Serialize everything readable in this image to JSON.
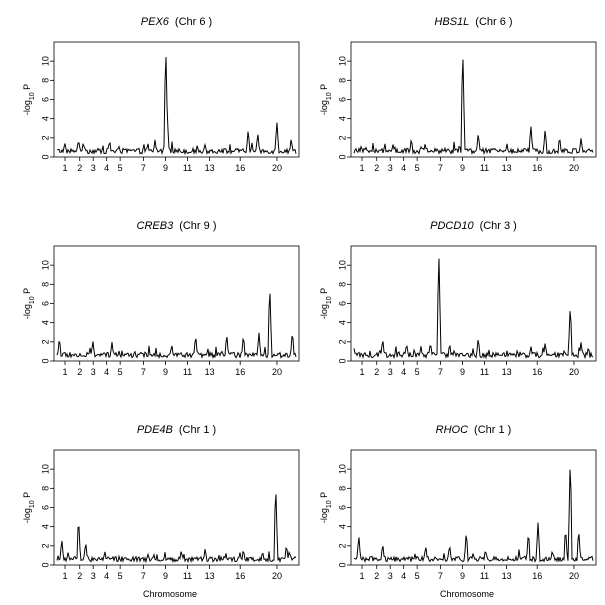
{
  "figure": {
    "xlabel": "Chromosome"
  },
  "chart_data": [
    {
      "type": "line",
      "gene": "PEX6",
      "chr_label": "(Chr 6 )",
      "ylabel": "-log10 P",
      "ylim": [
        0,
        12
      ],
      "yticks": [
        0,
        2,
        4,
        6,
        8,
        10
      ],
      "xticks": [
        "1",
        "2",
        "3",
        "4",
        "5",
        "7",
        "9",
        "11",
        "13",
        "16",
        "20"
      ],
      "peaks": [
        [
          0.03,
          1.1
        ],
        [
          0.09,
          1.9
        ],
        [
          0.11,
          1.6
        ],
        [
          0.22,
          1.8
        ],
        [
          0.38,
          1.5
        ],
        [
          0.41,
          1.8
        ],
        [
          0.455,
          11.8
        ],
        [
          0.46,
          5.5
        ],
        [
          0.62,
          1.4
        ],
        [
          0.8,
          2.9
        ],
        [
          0.84,
          2.6
        ],
        [
          0.92,
          3.8
        ],
        [
          0.98,
          2.0
        ]
      ]
    },
    {
      "type": "line",
      "gene": "HBS1L",
      "chr_label": "(Chr 6 )",
      "ylabel": "-log10 P",
      "ylim": [
        0,
        12
      ],
      "yticks": [
        0,
        2,
        4,
        6,
        8,
        10
      ],
      "xticks": [
        "1",
        "2",
        "3",
        "4",
        "5",
        "7",
        "9",
        "11",
        "13",
        "16",
        "20"
      ],
      "peaks": [
        [
          0.05,
          1.0
        ],
        [
          0.17,
          1.2
        ],
        [
          0.24,
          2.0
        ],
        [
          0.38,
          1.0
        ],
        [
          0.455,
          11.5
        ],
        [
          0.52,
          2.6
        ],
        [
          0.64,
          1.4
        ],
        [
          0.74,
          3.4
        ],
        [
          0.8,
          3.0
        ],
        [
          0.86,
          2.2
        ],
        [
          0.95,
          2.0
        ]
      ]
    },
    {
      "type": "line",
      "gene": "CREB3",
      "chr_label": "(Chr 9 )",
      "ylabel": "-log10 P",
      "ylim": [
        0,
        12
      ],
      "yticks": [
        0,
        2,
        4,
        6,
        8,
        10
      ],
      "xticks": [
        "1",
        "2",
        "3",
        "4",
        "5",
        "7",
        "9",
        "11",
        "13",
        "16",
        "20"
      ],
      "peaks": [
        [
          0.01,
          2.5
        ],
        [
          0.15,
          2.2
        ],
        [
          0.23,
          2.0
        ],
        [
          0.48,
          1.8
        ],
        [
          0.58,
          2.8
        ],
        [
          0.71,
          2.9
        ],
        [
          0.78,
          2.8
        ],
        [
          0.845,
          3.0
        ],
        [
          0.89,
          8.1
        ],
        [
          0.985,
          3.2
        ]
      ]
    },
    {
      "type": "line",
      "gene": "PDCD10",
      "chr_label": "(Chr 3 )",
      "ylabel": "-log10 P",
      "ylim": [
        0,
        12
      ],
      "yticks": [
        0,
        2,
        4,
        6,
        8,
        10
      ],
      "xticks": [
        "1",
        "2",
        "3",
        "4",
        "5",
        "7",
        "9",
        "11",
        "13",
        "16",
        "20"
      ],
      "peaks": [
        [
          0.12,
          2.4
        ],
        [
          0.22,
          1.9
        ],
        [
          0.28,
          1.6
        ],
        [
          0.32,
          2.0
        ],
        [
          0.355,
          11.5
        ],
        [
          0.4,
          1.9
        ],
        [
          0.52,
          2.5
        ],
        [
          0.74,
          1.6
        ],
        [
          0.8,
          2.0
        ],
        [
          0.905,
          6.0
        ],
        [
          0.95,
          2.0
        ]
      ]
    },
    {
      "type": "line",
      "gene": "PDE4B",
      "chr_label": "(Chr 1 )",
      "ylabel": "-log10 P",
      "ylim": [
        0,
        12
      ],
      "yticks": [
        0,
        2,
        4,
        6,
        8,
        10
      ],
      "xticks": [
        "1",
        "2",
        "3",
        "4",
        "5",
        "7",
        "9",
        "11",
        "13",
        "16",
        "20"
      ],
      "peaks": [
        [
          0.02,
          2.8
        ],
        [
          0.09,
          5.1
        ],
        [
          0.12,
          2.5
        ],
        [
          0.2,
          1.5
        ],
        [
          0.38,
          1.2
        ],
        [
          0.52,
          1.6
        ],
        [
          0.62,
          1.8
        ],
        [
          0.78,
          1.7
        ],
        [
          0.86,
          1.5
        ],
        [
          0.915,
          8.6
        ],
        [
          0.96,
          2.2
        ]
      ]
    },
    {
      "type": "line",
      "gene": "RHOC",
      "chr_label": "(Chr 1 )",
      "ylabel": "-log10 P",
      "ylim": [
        0,
        12
      ],
      "yticks": [
        0,
        2,
        4,
        6,
        8,
        10
      ],
      "xticks": [
        "1",
        "2",
        "3",
        "4",
        "5",
        "7",
        "9",
        "11",
        "13",
        "16",
        "20"
      ],
      "peaks": [
        [
          0.02,
          3.2
        ],
        [
          0.12,
          2.3
        ],
        [
          0.3,
          2.1
        ],
        [
          0.4,
          2.2
        ],
        [
          0.47,
          3.6
        ],
        [
          0.55,
          1.7
        ],
        [
          0.73,
          3.6
        ],
        [
          0.77,
          4.5
        ],
        [
          0.83,
          1.6
        ],
        [
          0.885,
          4.0
        ],
        [
          0.905,
          11.5
        ],
        [
          0.94,
          3.8
        ],
        [
          0.985,
          1.0
        ]
      ]
    }
  ]
}
